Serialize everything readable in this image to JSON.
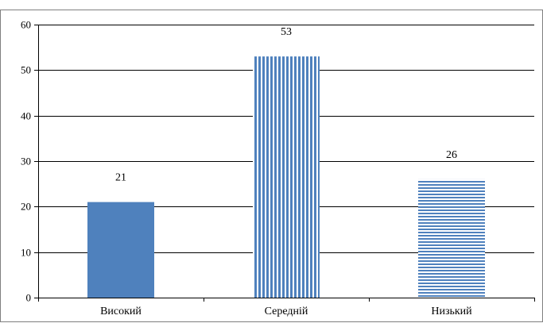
{
  "chart_data": {
    "type": "bar",
    "categories": [
      "Високий",
      "Середній",
      "Низький"
    ],
    "values": [
      21,
      53,
      26
    ],
    "data_labels": [
      "21",
      "53",
      "26"
    ],
    "title": "",
    "xlabel": "",
    "ylabel": "",
    "ylim": [
      0,
      60
    ],
    "yticks": [
      0,
      10,
      20,
      30,
      40,
      50,
      60
    ],
    "grid": true,
    "legend": false,
    "bar_styles": [
      "solid",
      "vertical-stripes",
      "horizontal-stripes"
    ],
    "colors": {
      "bar": "#4f81bd",
      "grid": "#000000",
      "frame": "#7f7f7f",
      "background": "#ffffff"
    }
  }
}
